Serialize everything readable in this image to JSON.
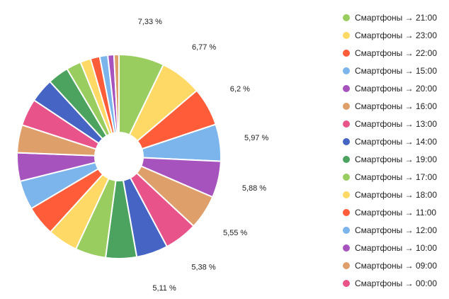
{
  "chart_data": {
    "type": "pie",
    "donut": true,
    "legend_position": "right",
    "series": [
      {
        "name": "Смартфоны → 21:00",
        "value": 7.33,
        "label": "7,33 %",
        "color": "#9ACD60"
      },
      {
        "name": "Смартфоны → 23:00",
        "value": 6.77,
        "label": "6,77 %",
        "color": "#FFD966"
      },
      {
        "name": "Смартфоны → 22:00",
        "value": 6.2,
        "label": "6,2 %",
        "color": "#FF5C3A"
      },
      {
        "name": "Смартфоны → 15:00",
        "value": 5.97,
        "label": "5,97 %",
        "color": "#7CB5EC"
      },
      {
        "name": "Смартфоны → 20:00",
        "value": 5.88,
        "label": "5,88 %",
        "color": "#A653BD"
      },
      {
        "name": "Смартфоны → 16:00",
        "value": 5.55,
        "label": "5,55 %",
        "color": "#DE9F6A"
      },
      {
        "name": "Смартфоны → 13:00",
        "value": 5.38,
        "label": "5,38 %",
        "color": "#E8548A"
      },
      {
        "name": "Смартфоны → 14:00",
        "value": 5.11,
        "label": "5,11 %",
        "color": "#4564C4"
      },
      {
        "name": "Смартфоны → 19:00",
        "value": 5.0,
        "color": "#4CA35F"
      },
      {
        "name": "Смартфоны → 17:00",
        "value": 4.95,
        "color": "#9ACD60"
      },
      {
        "name": "Смартфоны → 18:00",
        "value": 4.9,
        "color": "#FFD966"
      },
      {
        "name": "Смартфоны → 11:00",
        "value": 4.85,
        "color": "#FF5C3A"
      },
      {
        "name": "Смартфоны → 12:00",
        "value": 4.7,
        "color": "#7CB5EC"
      },
      {
        "name": "Смартфоны → 10:00",
        "value": 4.6,
        "color": "#A653BD"
      },
      {
        "name": "Смартфоны → 09:00",
        "value": 4.5,
        "color": "#DE9F6A"
      },
      {
        "name": "Смартфоны → 00:00",
        "value": 4.4,
        "color": "#E8548A"
      },
      {
        "value": 3.9,
        "color": "#4564C4"
      },
      {
        "value": 3.4,
        "color": "#4CA35F"
      },
      {
        "value": 2.4,
        "color": "#9ACD60"
      },
      {
        "value": 1.7,
        "color": "#FFD966"
      },
      {
        "value": 1.5,
        "color": "#FF5C3A"
      },
      {
        "value": 1.3,
        "color": "#7CB5EC"
      },
      {
        "value": 1.0,
        "color": "#A653BD"
      },
      {
        "value": 0.8,
        "color": "#DE9F6A"
      }
    ]
  }
}
